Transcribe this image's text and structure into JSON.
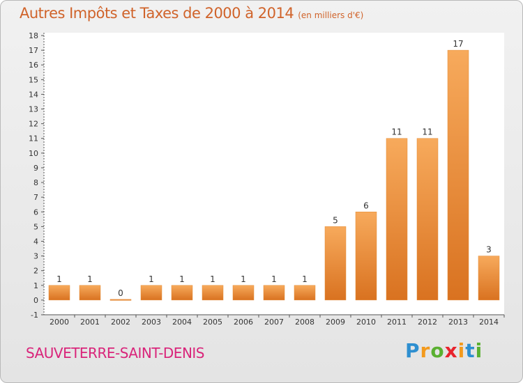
{
  "chart_data": {
    "type": "bar",
    "title": "Autres Impôts et Taxes de 2000 à 2014",
    "unit_label": "(en milliers d'€)",
    "categories": [
      "2000",
      "2001",
      "2002",
      "2003",
      "2004",
      "2005",
      "2006",
      "2007",
      "2008",
      "2009",
      "2010",
      "2011",
      "2012",
      "2013",
      "2014"
    ],
    "values": [
      1,
      1,
      0,
      1,
      1,
      1,
      1,
      1,
      1,
      5,
      6,
      11,
      11,
      17,
      3
    ],
    "value_labels": [
      "1",
      "1",
      "0",
      "1",
      "1",
      "1",
      "1",
      "1",
      "1",
      "5",
      "6",
      "11",
      "11",
      "17",
      "3"
    ],
    "y_ticks": [
      -1,
      0,
      1,
      2,
      3,
      4,
      5,
      6,
      7,
      8,
      9,
      10,
      11,
      12,
      13,
      14,
      15,
      16,
      17,
      18
    ],
    "ylim": [
      -1,
      18
    ],
    "grid": false,
    "bar_color": "#f0963e"
  },
  "footer": {
    "commune": "SAUVETERRE-SAINT-DENIS",
    "logo_letters": [
      "P",
      "r",
      "o",
      "x",
      "i",
      "t",
      "i"
    ],
    "logo_colors": [
      "#2e8fd0",
      "#f39a1d",
      "#5ab031",
      "#e8232d",
      "#f39a1d",
      "#2e8fd0",
      "#5ab031"
    ]
  }
}
